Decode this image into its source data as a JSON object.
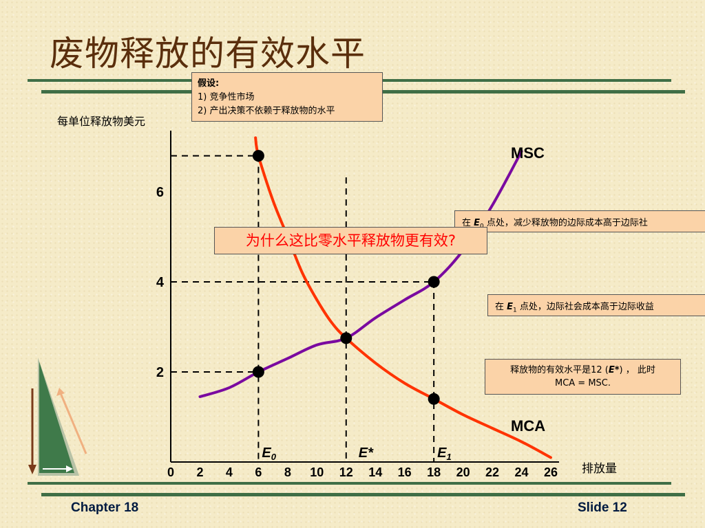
{
  "title": "废物释放的有效水平",
  "assumption": {
    "heading": "假设:",
    "items": [
      "1) 竞争性市场",
      "2) 产出决策不依赖于释放物的水平"
    ]
  },
  "question": "为什么这比零水平释放物更有效?",
  "notes": {
    "e0": {
      "prefix": "在 ",
      "point": "E",
      "sub": "0",
      "text": "  点处，减少释放物的边际成本高于边际社"
    },
    "e1": {
      "prefix": "在 ",
      "point": "E",
      "sub": "1",
      "text": "  点处，边际社会成本高于边际收益"
    },
    "efficient": {
      "line1_pre": "释放物的有效水平是12 (",
      "line1_point": "E*",
      "line1_post": ") ， 此时",
      "line2": "MCA = MSC."
    }
  },
  "footer": {
    "left": "Chapter 18",
    "right": "Slide 12"
  },
  "colors": {
    "msc": "#7a0aa0",
    "mca": "#ff3300",
    "accent": "#3f6e46",
    "box": "#fbd3a8"
  },
  "chart_data": {
    "type": "line",
    "ylabel": "每单位释放物美元",
    "xlabel": "排放量",
    "xlim": [
      0,
      26
    ],
    "ylim": [
      0,
      7.5
    ],
    "x_ticks": [
      0,
      2,
      4,
      6,
      8,
      10,
      12,
      14,
      16,
      18,
      20,
      22,
      24,
      26
    ],
    "y_ticks": [
      2,
      4,
      6
    ],
    "series": [
      {
        "name": "MSC",
        "color": "#7a0aa0",
        "x": [
          2,
          4,
          6,
          8,
          10,
          12,
          14,
          16,
          18,
          20,
          22,
          24
        ],
        "y": [
          1.45,
          1.65,
          2.0,
          2.3,
          2.6,
          2.75,
          3.2,
          3.6,
          4.0,
          4.7,
          5.7,
          6.9
        ]
      },
      {
        "name": "MCA",
        "color": "#ff3300",
        "x": [
          5.8,
          6,
          7,
          8,
          9,
          10,
          11,
          12,
          14,
          16,
          18,
          20,
          22,
          24,
          26
        ],
        "y": [
          7.2,
          6.8,
          5.8,
          5.0,
          4.2,
          3.6,
          3.1,
          2.75,
          2.2,
          1.75,
          1.4,
          1.05,
          0.75,
          0.45,
          0.1
        ]
      }
    ],
    "points": [
      {
        "label": "E0",
        "x": 6,
        "y": 2.0
      },
      {
        "label": "",
        "x": 6,
        "y": 6.8
      },
      {
        "label": "E*",
        "x": 12,
        "y": 2.75
      },
      {
        "label": "E1",
        "x": 18,
        "y": 4.0
      },
      {
        "label": "",
        "x": 18,
        "y": 1.4
      }
    ],
    "annotations": [
      {
        "text": "6",
        "y": 6
      },
      {
        "text": "4",
        "y": 4
      },
      {
        "text": "2",
        "y": 2
      }
    ]
  }
}
